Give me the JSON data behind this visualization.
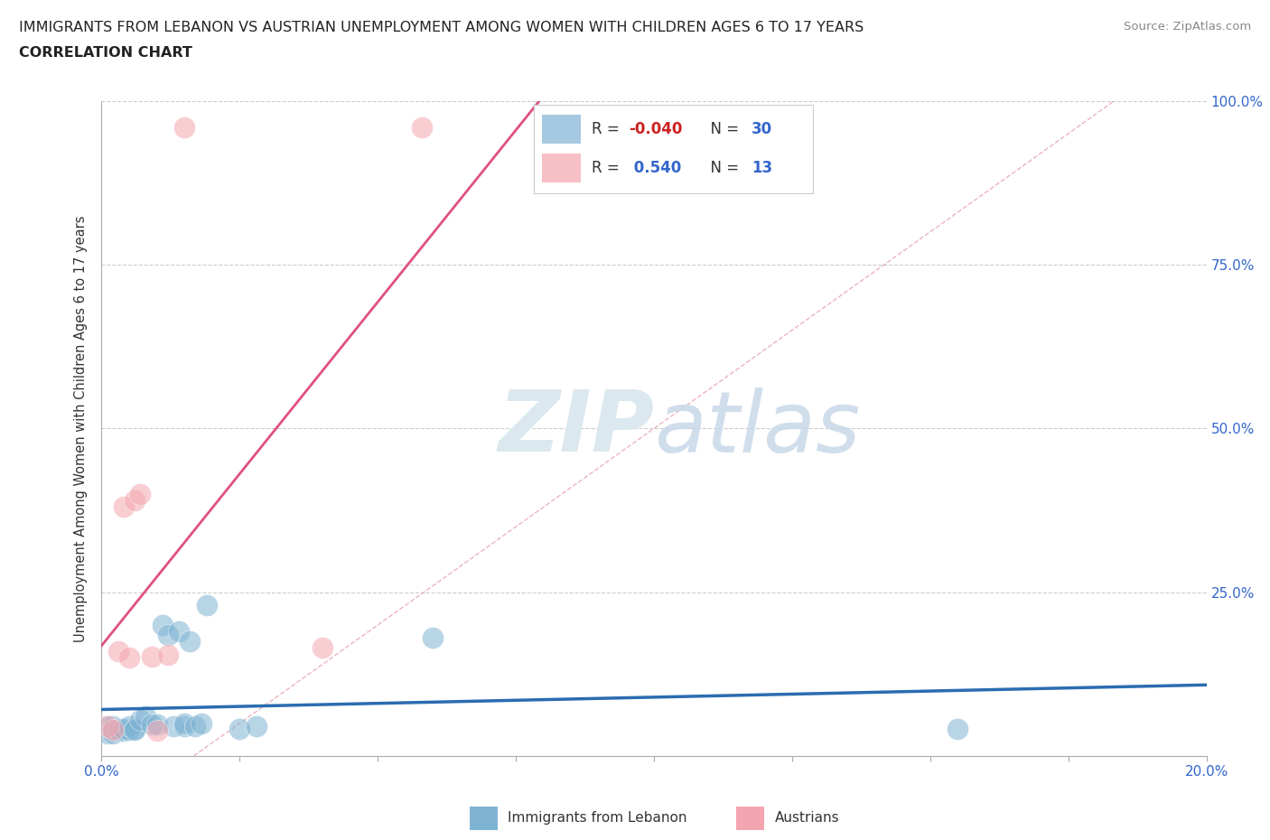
{
  "title_line1": "IMMIGRANTS FROM LEBANON VS AUSTRIAN UNEMPLOYMENT AMONG WOMEN WITH CHILDREN AGES 6 TO 17 YEARS",
  "title_line2": "CORRELATION CHART",
  "source_text": "Source: ZipAtlas.com",
  "ylabel": "Unemployment Among Women with Children Ages 6 to 17 years",
  "xlim": [
    0.0,
    0.2
  ],
  "ylim": [
    0.0,
    1.0
  ],
  "xtick_positions": [
    0.0,
    0.025,
    0.05,
    0.075,
    0.1,
    0.125,
    0.15,
    0.175,
    0.2
  ],
  "xticklabels": [
    "0.0%",
    "",
    "",
    "",
    "",
    "",
    "",
    "",
    "20.0%"
  ],
  "ytick_positions": [
    0.0,
    0.25,
    0.5,
    0.75,
    1.0
  ],
  "yticklabels_right": [
    "",
    "25.0%",
    "50.0%",
    "75.0%",
    "100.0%"
  ],
  "blue_color": "#7fb3d3",
  "pink_color": "#f4a6b0",
  "blue_line_color": "#2b6cb0",
  "pink_line_color": "#e05080",
  "diag_line_color": "#e8a0b0",
  "watermark_text": "ZIPatlas",
  "watermark_color": "#dce8f0",
  "blue_scatter_x": [
    0.001,
    0.001,
    0.002,
    0.002,
    0.003,
    0.003,
    0.004,
    0.004,
    0.005,
    0.005,
    0.006,
    0.006,
    0.007,
    0.008,
    0.009,
    0.01,
    0.011,
    0.012,
    0.013,
    0.014,
    0.015,
    0.015,
    0.016,
    0.017,
    0.018,
    0.019,
    0.025,
    0.028,
    0.06,
    0.155
  ],
  "blue_scatter_y": [
    0.045,
    0.035,
    0.045,
    0.035,
    0.038,
    0.042,
    0.038,
    0.042,
    0.04,
    0.045,
    0.042,
    0.04,
    0.055,
    0.06,
    0.048,
    0.048,
    0.2,
    0.185,
    0.045,
    0.19,
    0.045,
    0.05,
    0.175,
    0.045,
    0.05,
    0.23,
    0.042,
    0.045,
    0.18,
    0.042
  ],
  "pink_scatter_x": [
    0.001,
    0.002,
    0.003,
    0.004,
    0.005,
    0.006,
    0.007,
    0.009,
    0.01,
    0.012,
    0.015,
    0.04,
    0.058
  ],
  "pink_scatter_y": [
    0.045,
    0.04,
    0.16,
    0.38,
    0.15,
    0.39,
    0.4,
    0.152,
    0.038,
    0.155,
    0.96,
    0.165,
    0.96
  ],
  "legend_R_blue": "-0.040",
  "legend_N_blue": "30",
  "legend_R_pink": "0.540",
  "legend_N_pink": "13",
  "bottom_legend_blue": "Immigrants from Lebanon",
  "bottom_legend_pink": "Austrians"
}
